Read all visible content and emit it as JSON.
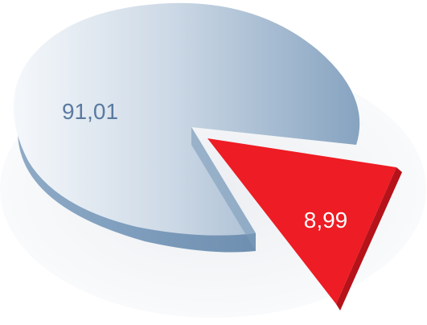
{
  "chart_data": {
    "type": "pie",
    "title": "",
    "slices": [
      {
        "label": "91,01",
        "value": 91.01,
        "color": "#8eaac6"
      },
      {
        "label": "8,99",
        "value": 8.99,
        "color": "#ee1c24"
      }
    ],
    "style": "3d-exploded",
    "legend": "none"
  }
}
